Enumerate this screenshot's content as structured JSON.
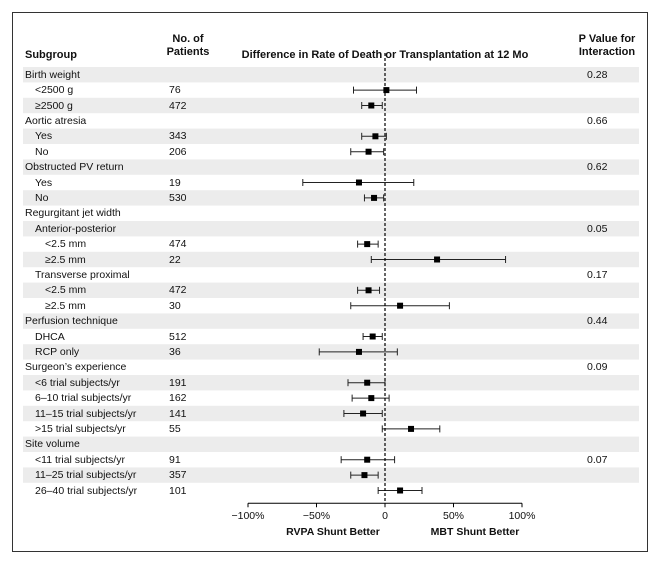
{
  "chart_data": {
    "type": "forest",
    "headers": {
      "subgroup": "Subgroup",
      "patients": [
        "No. of",
        "Patients"
      ],
      "effect": "Difference in Rate of Death or Transplantation at 12 Mo",
      "pvalue": [
        "P Value for",
        "Interaction"
      ]
    },
    "x_axis": {
      "range": [
        -100,
        100
      ],
      "ticks": [
        -100,
        -50,
        0,
        50,
        100
      ],
      "tick_labels": [
        "−100%",
        "−50%",
        "0",
        "50%",
        "100%"
      ],
      "left_label": "RVPA Shunt Better",
      "right_label": "MBT Shunt Better",
      "reference": 0
    },
    "rows": [
      {
        "label": "Birth weight",
        "indent": 0,
        "n": "",
        "p": "0.28",
        "est": null,
        "lo": null,
        "hi": null
      },
      {
        "label": "<2500 g",
        "indent": 1,
        "n": "76",
        "p": "",
        "est": 1,
        "lo": -23,
        "hi": 23
      },
      {
        "label": "≥2500 g",
        "indent": 1,
        "n": "472",
        "p": "",
        "est": -10,
        "lo": -17,
        "hi": -2
      },
      {
        "label": "Aortic atresia",
        "indent": 0,
        "n": "",
        "p": "0.66",
        "est": null,
        "lo": null,
        "hi": null
      },
      {
        "label": "Yes",
        "indent": 1,
        "n": "343",
        "p": "",
        "est": -7,
        "lo": -17,
        "hi": 1
      },
      {
        "label": "No",
        "indent": 1,
        "n": "206",
        "p": "",
        "est": -12,
        "lo": -25,
        "hi": -1
      },
      {
        "label": "Obstructed PV return",
        "indent": 0,
        "n": "",
        "p": "0.62",
        "est": null,
        "lo": null,
        "hi": null
      },
      {
        "label": "Yes",
        "indent": 1,
        "n": "19",
        "p": "",
        "est": -19,
        "lo": -60,
        "hi": 21
      },
      {
        "label": "No",
        "indent": 1,
        "n": "530",
        "p": "",
        "est": -8,
        "lo": -15,
        "hi": -1
      },
      {
        "label": "Regurgitant jet width",
        "indent": 0,
        "n": "",
        "p": "",
        "est": null,
        "lo": null,
        "hi": null
      },
      {
        "label": "Anterior-posterior",
        "indent": 1,
        "n": "",
        "p": "0.05",
        "est": null,
        "lo": null,
        "hi": null
      },
      {
        "label": "<2.5 mm",
        "indent": 2,
        "n": "474",
        "p": "",
        "est": -13,
        "lo": -20,
        "hi": -5
      },
      {
        "label": "≥2.5 mm",
        "indent": 2,
        "n": "22",
        "p": "",
        "est": 38,
        "lo": -10,
        "hi": 88
      },
      {
        "label": "Transverse proximal",
        "indent": 1,
        "n": "",
        "p": "0.17",
        "est": null,
        "lo": null,
        "hi": null
      },
      {
        "label": "<2.5 mm",
        "indent": 2,
        "n": "472",
        "p": "",
        "est": -12,
        "lo": -20,
        "hi": -4
      },
      {
        "label": "≥2.5 mm",
        "indent": 2,
        "n": "30",
        "p": "",
        "est": 11,
        "lo": -25,
        "hi": 47
      },
      {
        "label": "Perfusion technique",
        "indent": 0,
        "n": "",
        "p": "0.44",
        "est": null,
        "lo": null,
        "hi": null
      },
      {
        "label": "DHCA",
        "indent": 1,
        "n": "512",
        "p": "",
        "est": -9,
        "lo": -16,
        "hi": -2
      },
      {
        "label": "RCP only",
        "indent": 1,
        "n": "36",
        "p": "",
        "est": -19,
        "lo": -48,
        "hi": 9
      },
      {
        "label": "Surgeon’s experience",
        "indent": 0,
        "n": "",
        "p": "0.09",
        "est": null,
        "lo": null,
        "hi": null
      },
      {
        "label": "<6 trial subjects/yr",
        "indent": 1,
        "n": "191",
        "p": "",
        "est": -13,
        "lo": -27,
        "hi": 0
      },
      {
        "label": "6–10 trial subjects/yr",
        "indent": 1,
        "n": "162",
        "p": "",
        "est": -10,
        "lo": -24,
        "hi": 3
      },
      {
        "label": "11–15 trial subjects/yr",
        "indent": 1,
        "n": "141",
        "p": "",
        "est": -16,
        "lo": -30,
        "hi": -2
      },
      {
        "label": ">15 trial subjects/yr",
        "indent": 1,
        "n": "55",
        "p": "",
        "est": 19,
        "lo": -2,
        "hi": 40
      },
      {
        "label": "Site volume",
        "indent": 0,
        "n": "",
        "p": "",
        "est": null,
        "lo": null,
        "hi": null
      },
      {
        "label": "<11 trial subjects/yr",
        "indent": 1,
        "n": "91",
        "p": "0.07",
        "est": -13,
        "lo": -32,
        "hi": 7
      },
      {
        "label": "11–25 trial subjects/yr",
        "indent": 1,
        "n": "357",
        "p": "",
        "est": -15,
        "lo": -25,
        "hi": -5
      },
      {
        "label": "26–40 trial subjects/yr",
        "indent": 1,
        "n": "101",
        "p": "",
        "est": 11,
        "lo": -5,
        "hi": 27
      }
    ]
  }
}
